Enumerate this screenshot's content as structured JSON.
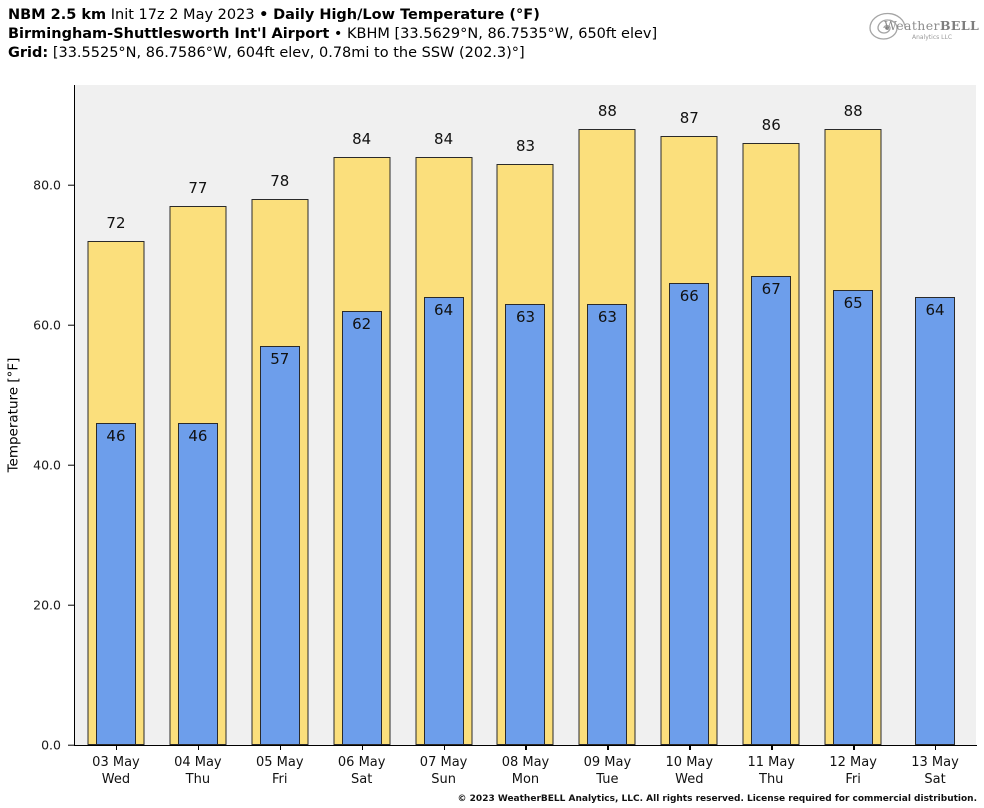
{
  "header": {
    "line1": {
      "bold1": "NBM 2.5 km",
      "regular1": "Init 17z 2 May 2023",
      "bullet": "•",
      "bold2": "Daily High/Low Temperature (°F)"
    },
    "line2": {
      "bold": "Birmingham-Shuttlesworth Int'l Airport",
      "bullet": "•",
      "regular": "KBHM [33.5629°N, 86.7535°W, 650ft elev]"
    },
    "line3": {
      "bold": "Grid:",
      "regular": "[33.5525°N, 86.7586°W, 604ft elev, 0.78mi to the SSW (202.3)°]"
    }
  },
  "logo": {
    "text_weather": "Weather",
    "text_bell": "BELL",
    "subtitle": "Analytics LLC"
  },
  "chart_data": {
    "type": "bar",
    "title": "NBM 2.5 km Init 17z 2 May 2023 • Daily High/Low Temperature (°F)",
    "subtitle": "Birmingham-Shuttlesworth Int'l Airport • KBHM [33.5629°N, 86.7535°W, 650ft elev]",
    "ylabel": "Temperature [°F]",
    "xlabel": "",
    "grid": false,
    "legend": false,
    "ylim": [
      0,
      94.3
    ],
    "yticks": [
      0,
      20,
      40,
      60,
      80
    ],
    "ytick_labels": [
      "0.0",
      "20.0",
      "40.0",
      "60.0",
      "80.0"
    ],
    "categories": [
      {
        "date": "03 May",
        "day": "Wed"
      },
      {
        "date": "04 May",
        "day": "Thu"
      },
      {
        "date": "05 May",
        "day": "Fri"
      },
      {
        "date": "06 May",
        "day": "Sat"
      },
      {
        "date": "07 May",
        "day": "Sun"
      },
      {
        "date": "08 May",
        "day": "Mon"
      },
      {
        "date": "09 May",
        "day": "Tue"
      },
      {
        "date": "10 May",
        "day": "Wed"
      },
      {
        "date": "11 May",
        "day": "Thu"
      },
      {
        "date": "12 May",
        "day": "Fri"
      },
      {
        "date": "13 May",
        "day": "Sat"
      }
    ],
    "series": [
      {
        "name": "Daily High",
        "color": "#FBDF7C",
        "values": [
          72,
          77,
          78,
          84,
          84,
          83,
          88,
          87,
          86,
          88,
          null
        ]
      },
      {
        "name": "Daily Low",
        "color": "#6D9EEB",
        "values": [
          46,
          46,
          57,
          62,
          64,
          63,
          63,
          66,
          67,
          65,
          64
        ]
      }
    ]
  },
  "footer": {
    "text": "© 2023 WeatherBELL Analytics, LLC. All rights reserved. License required for commercial distribution."
  }
}
